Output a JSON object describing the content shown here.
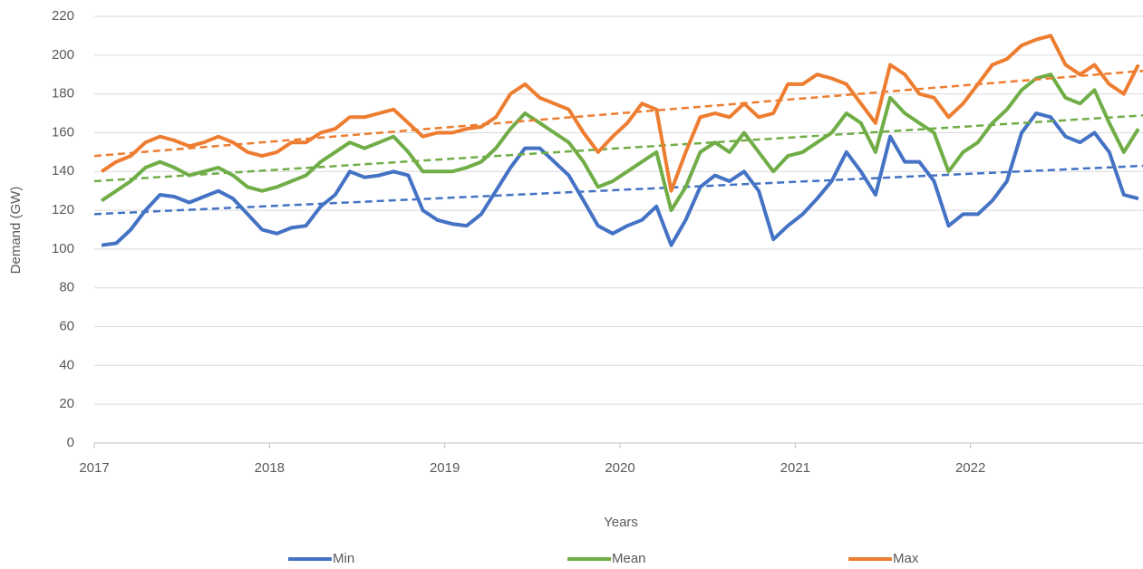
{
  "chart_data": {
    "type": "line",
    "x_label": "Years",
    "y_label": "Demand (GW)",
    "x": [
      2017.042,
      2017.125,
      2017.208,
      2017.292,
      2017.375,
      2017.458,
      2017.542,
      2017.625,
      2017.708,
      2017.792,
      2017.875,
      2017.958,
      2018.042,
      2018.125,
      2018.208,
      2018.292,
      2018.375,
      2018.458,
      2018.542,
      2018.625,
      2018.708,
      2018.792,
      2018.875,
      2018.958,
      2019.042,
      2019.125,
      2019.208,
      2019.292,
      2019.375,
      2019.458,
      2019.542,
      2019.625,
      2019.708,
      2019.792,
      2019.875,
      2019.958,
      2020.042,
      2020.125,
      2020.208,
      2020.292,
      2020.375,
      2020.458,
      2020.542,
      2020.625,
      2020.708,
      2020.792,
      2020.875,
      2020.958,
      2021.042,
      2021.125,
      2021.208,
      2021.292,
      2021.375,
      2021.458,
      2021.542,
      2021.625,
      2021.708,
      2021.792,
      2021.875,
      2021.958,
      2022.042,
      2022.125,
      2022.208,
      2022.292,
      2022.375,
      2022.458,
      2022.542,
      2022.625,
      2022.708,
      2022.792,
      2022.875,
      2022.958
    ],
    "series": [
      {
        "name": "Min",
        "color": "#4472c4",
        "trend": [
          118,
          143
        ],
        "values": [
          102,
          103,
          110,
          120,
          128,
          127,
          124,
          127,
          130,
          126,
          118,
          110,
          108,
          111,
          112,
          122,
          128,
          140,
          137,
          138,
          140,
          138,
          120,
          115,
          113,
          112,
          118,
          130,
          142,
          152,
          152,
          145,
          138,
          125,
          112,
          108,
          112,
          115,
          122,
          102,
          115,
          132,
          138,
          135,
          140,
          130,
          105,
          112,
          118,
          126,
          135,
          150,
          140,
          128,
          158,
          145,
          145,
          135,
          112,
          118,
          118,
          125,
          135,
          160,
          170,
          168,
          158,
          155,
          160,
          150,
          128,
          126
        ]
      },
      {
        "name": "Mean",
        "color": "#70ad47",
        "trend": [
          135,
          169
        ],
        "values": [
          125,
          130,
          135,
          142,
          145,
          142,
          138,
          140,
          142,
          138,
          132,
          130,
          132,
          135,
          138,
          145,
          150,
          155,
          152,
          155,
          158,
          150,
          140,
          140,
          140,
          142,
          145,
          152,
          162,
          170,
          165,
          160,
          155,
          145,
          132,
          135,
          140,
          145,
          150,
          120,
          132,
          150,
          155,
          150,
          160,
          150,
          140,
          148,
          150,
          155,
          160,
          170,
          165,
          150,
          178,
          170,
          165,
          160,
          140,
          150,
          155,
          165,
          172,
          182,
          188,
          190,
          178,
          175,
          182,
          165,
          150,
          162
        ]
      },
      {
        "name": "Max",
        "color": "#ed7d31",
        "trend": [
          148,
          192
        ],
        "values": [
          140,
          145,
          148,
          155,
          158,
          156,
          153,
          155,
          158,
          155,
          150,
          148,
          150,
          155,
          155,
          160,
          162,
          168,
          168,
          170,
          172,
          165,
          158,
          160,
          160,
          162,
          163,
          168,
          180,
          185,
          178,
          175,
          172,
          160,
          150,
          158,
          165,
          175,
          172,
          130,
          150,
          168,
          170,
          168,
          175,
          168,
          170,
          185,
          185,
          190,
          188,
          185,
          175,
          165,
          195,
          190,
          180,
          178,
          168,
          175,
          185,
          195,
          198,
          205,
          208,
          210,
          195,
          190,
          195,
          185,
          180,
          195
        ]
      }
    ],
    "xlim": [
      2017,
      2023
    ],
    "xticks": [
      2017,
      2018,
      2019,
      2020,
      2021,
      2022
    ],
    "ylim": [
      0,
      220
    ],
    "yticks": [
      0,
      20,
      40,
      60,
      80,
      100,
      120,
      140,
      160,
      180,
      200,
      220
    ],
    "grid": true,
    "legend": "bottom"
  }
}
